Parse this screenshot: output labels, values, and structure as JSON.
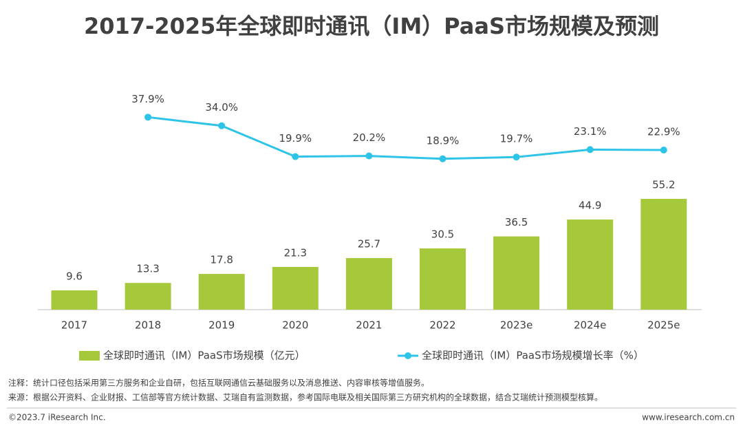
{
  "chart_data": {
    "type": "combo",
    "title": "2017-2025年全球即时通讯（IM）PaaS市场规模及预测",
    "categories": [
      "2017",
      "2018",
      "2019",
      "2020",
      "2021",
      "2022",
      "2023e",
      "2024e",
      "2025e"
    ],
    "series": [
      {
        "name": "全球即时通讯（IM）PaaS市场规模（亿元）",
        "type": "bar",
        "color": "#a5c93a",
        "values": [
          9.6,
          13.3,
          17.8,
          21.3,
          25.7,
          30.5,
          36.5,
          44.9,
          55.2
        ]
      },
      {
        "name": "全球即时通讯（IM）PaaS市场规模增长率（%）",
        "type": "line",
        "axis": "y2",
        "color": "#2ec4e8",
        "values": [
          null,
          37.9,
          34.0,
          19.9,
          20.2,
          18.9,
          19.7,
          23.1,
          22.9
        ],
        "value_labels": [
          null,
          "37.9%",
          "34.0%",
          "19.9%",
          "20.2%",
          "18.9%",
          "19.7%",
          "23.1%",
          "22.9%"
        ]
      }
    ],
    "ylim": [
      0,
      120
    ],
    "y2lim": [
      -50,
      60
    ],
    "grid": false,
    "legend": "bottom"
  },
  "notes": [
    "注释：统计口径包括采用第三方服务和企业自研，包括互联网通信云基础服务以及消息推送、内容审核等增值服务。",
    "来源：根据公开资料、企业财报、工信部等官方统计数据、艾瑞自有监测数据，参考国际电联及相关国际第三方研究机构的全球数据，结合艾瑞统计预测模型核算。"
  ],
  "footer": {
    "copyright": "©2023.7 iResearch Inc.",
    "website": "www.iresearch.com.cn"
  }
}
